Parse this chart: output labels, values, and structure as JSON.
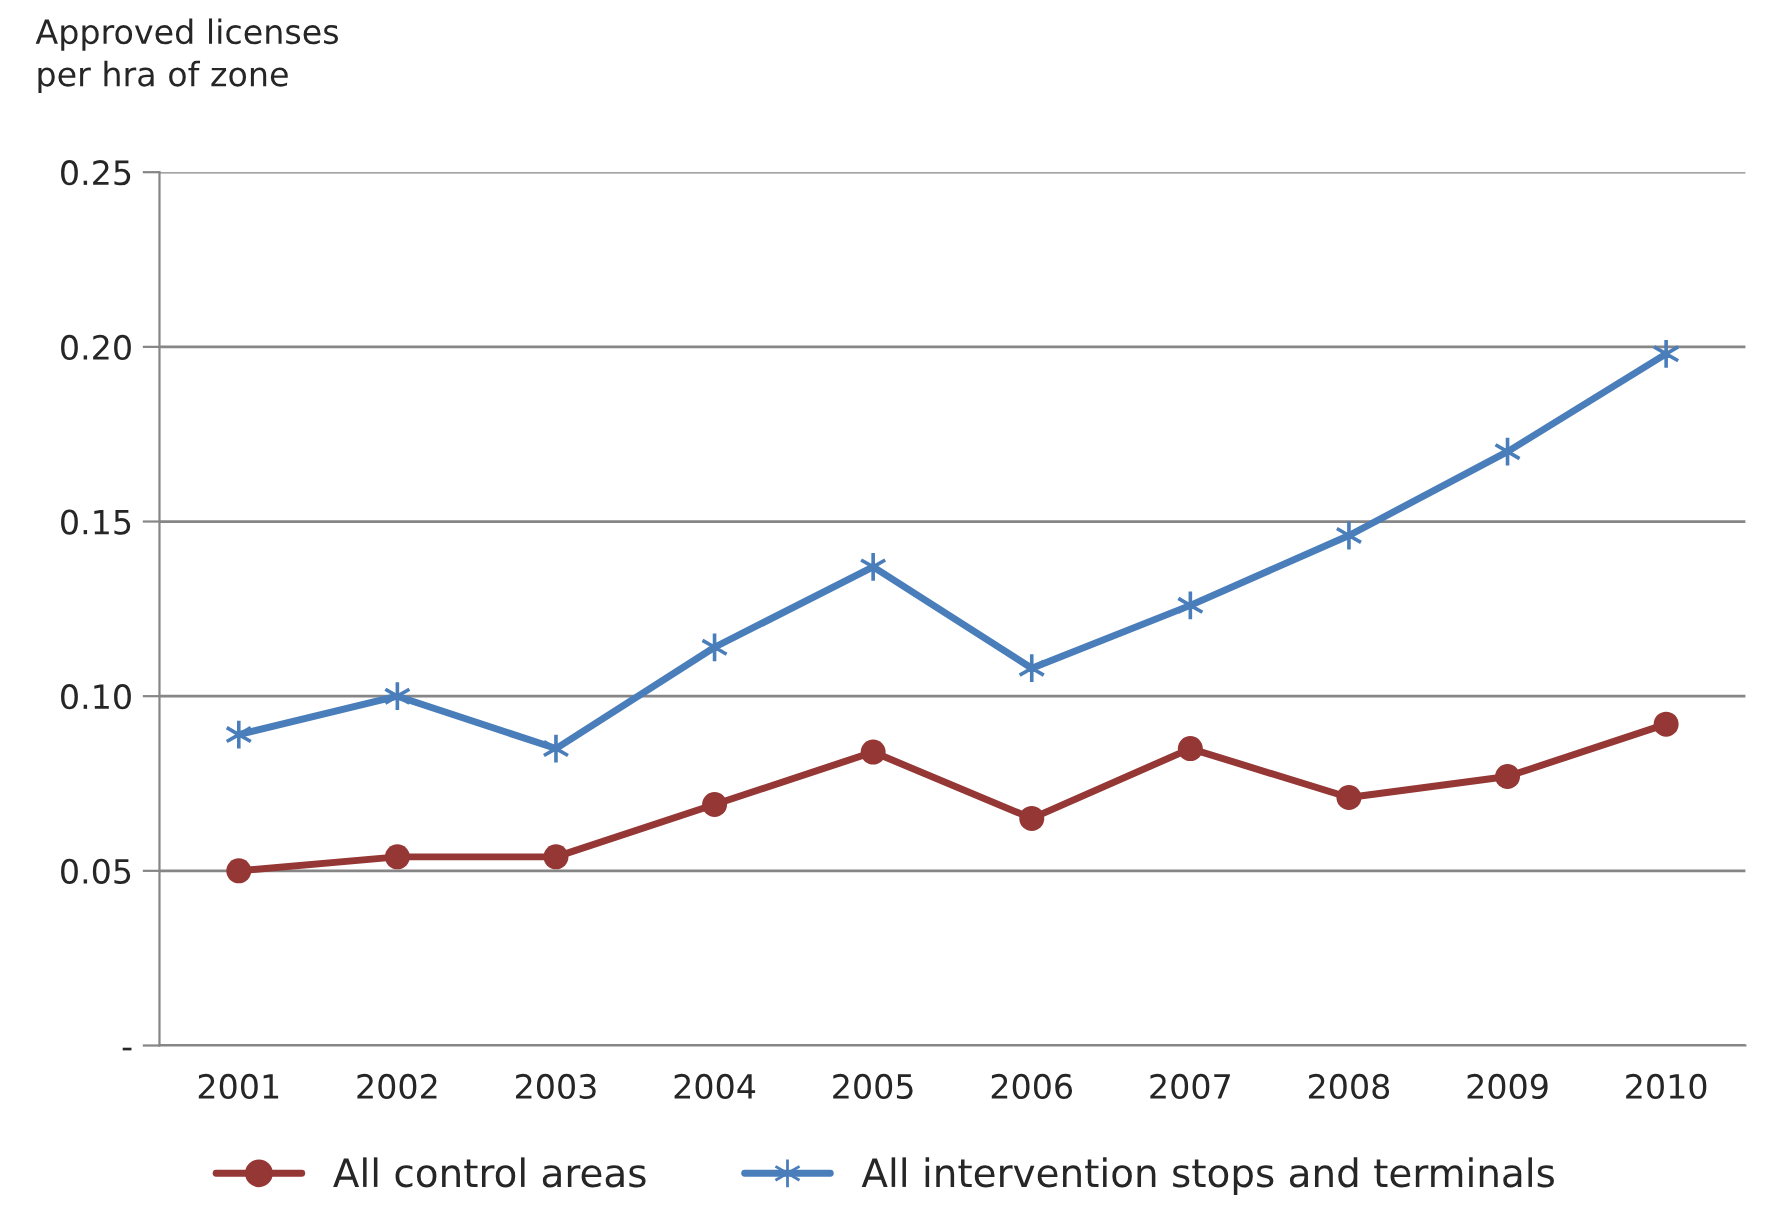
{
  "chart_data": {
    "type": "line",
    "ylabel": "Approved licenses\nper hra of zone",
    "categories": [
      "2001",
      "2002",
      "2003",
      "2004",
      "2005",
      "2006",
      "2007",
      "2008",
      "2009",
      "2010"
    ],
    "series": [
      {
        "name": "All control areas",
        "color": "#953735",
        "marker": "circle",
        "values": [
          0.05,
          0.054,
          0.054,
          0.069,
          0.084,
          0.065,
          0.085,
          0.071,
          0.077,
          0.092
        ]
      },
      {
        "name": "All intervention stops and terminals",
        "color": "#4a7ebb",
        "marker": "cross",
        "values": [
          0.089,
          0.1,
          0.085,
          0.114,
          0.137,
          0.108,
          0.126,
          0.146,
          0.17,
          0.198
        ]
      }
    ],
    "ylim": [
      0,
      0.25
    ],
    "yticks": [
      {
        "value": 0,
        "label": "-"
      },
      0.05,
      {
        "value": 0.1,
        "label": "0.10"
      },
      0.15,
      {
        "value": 0.2,
        "label": "0.20"
      },
      0.25
    ],
    "grid": "y",
    "legend": "bottom",
    "line_style": "solid"
  }
}
